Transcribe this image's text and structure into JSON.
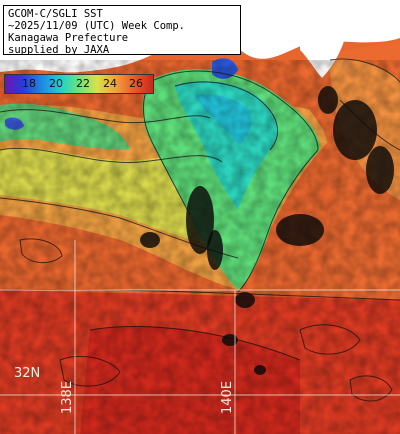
{
  "title": {
    "line1": "GCOM-C/SGLI SST",
    "line2": "~2025/11/09 (UTC) Week Comp.",
    "line3": "Kanagawa Prefecture",
    "line4": "supplied by JAXA"
  },
  "legend": {
    "ticks": [
      "18",
      "20",
      "22",
      "24",
      "26"
    ]
  },
  "gridlabels": {
    "lat": "32N",
    "lon1": "138E",
    "lon2": "140E"
  }
}
